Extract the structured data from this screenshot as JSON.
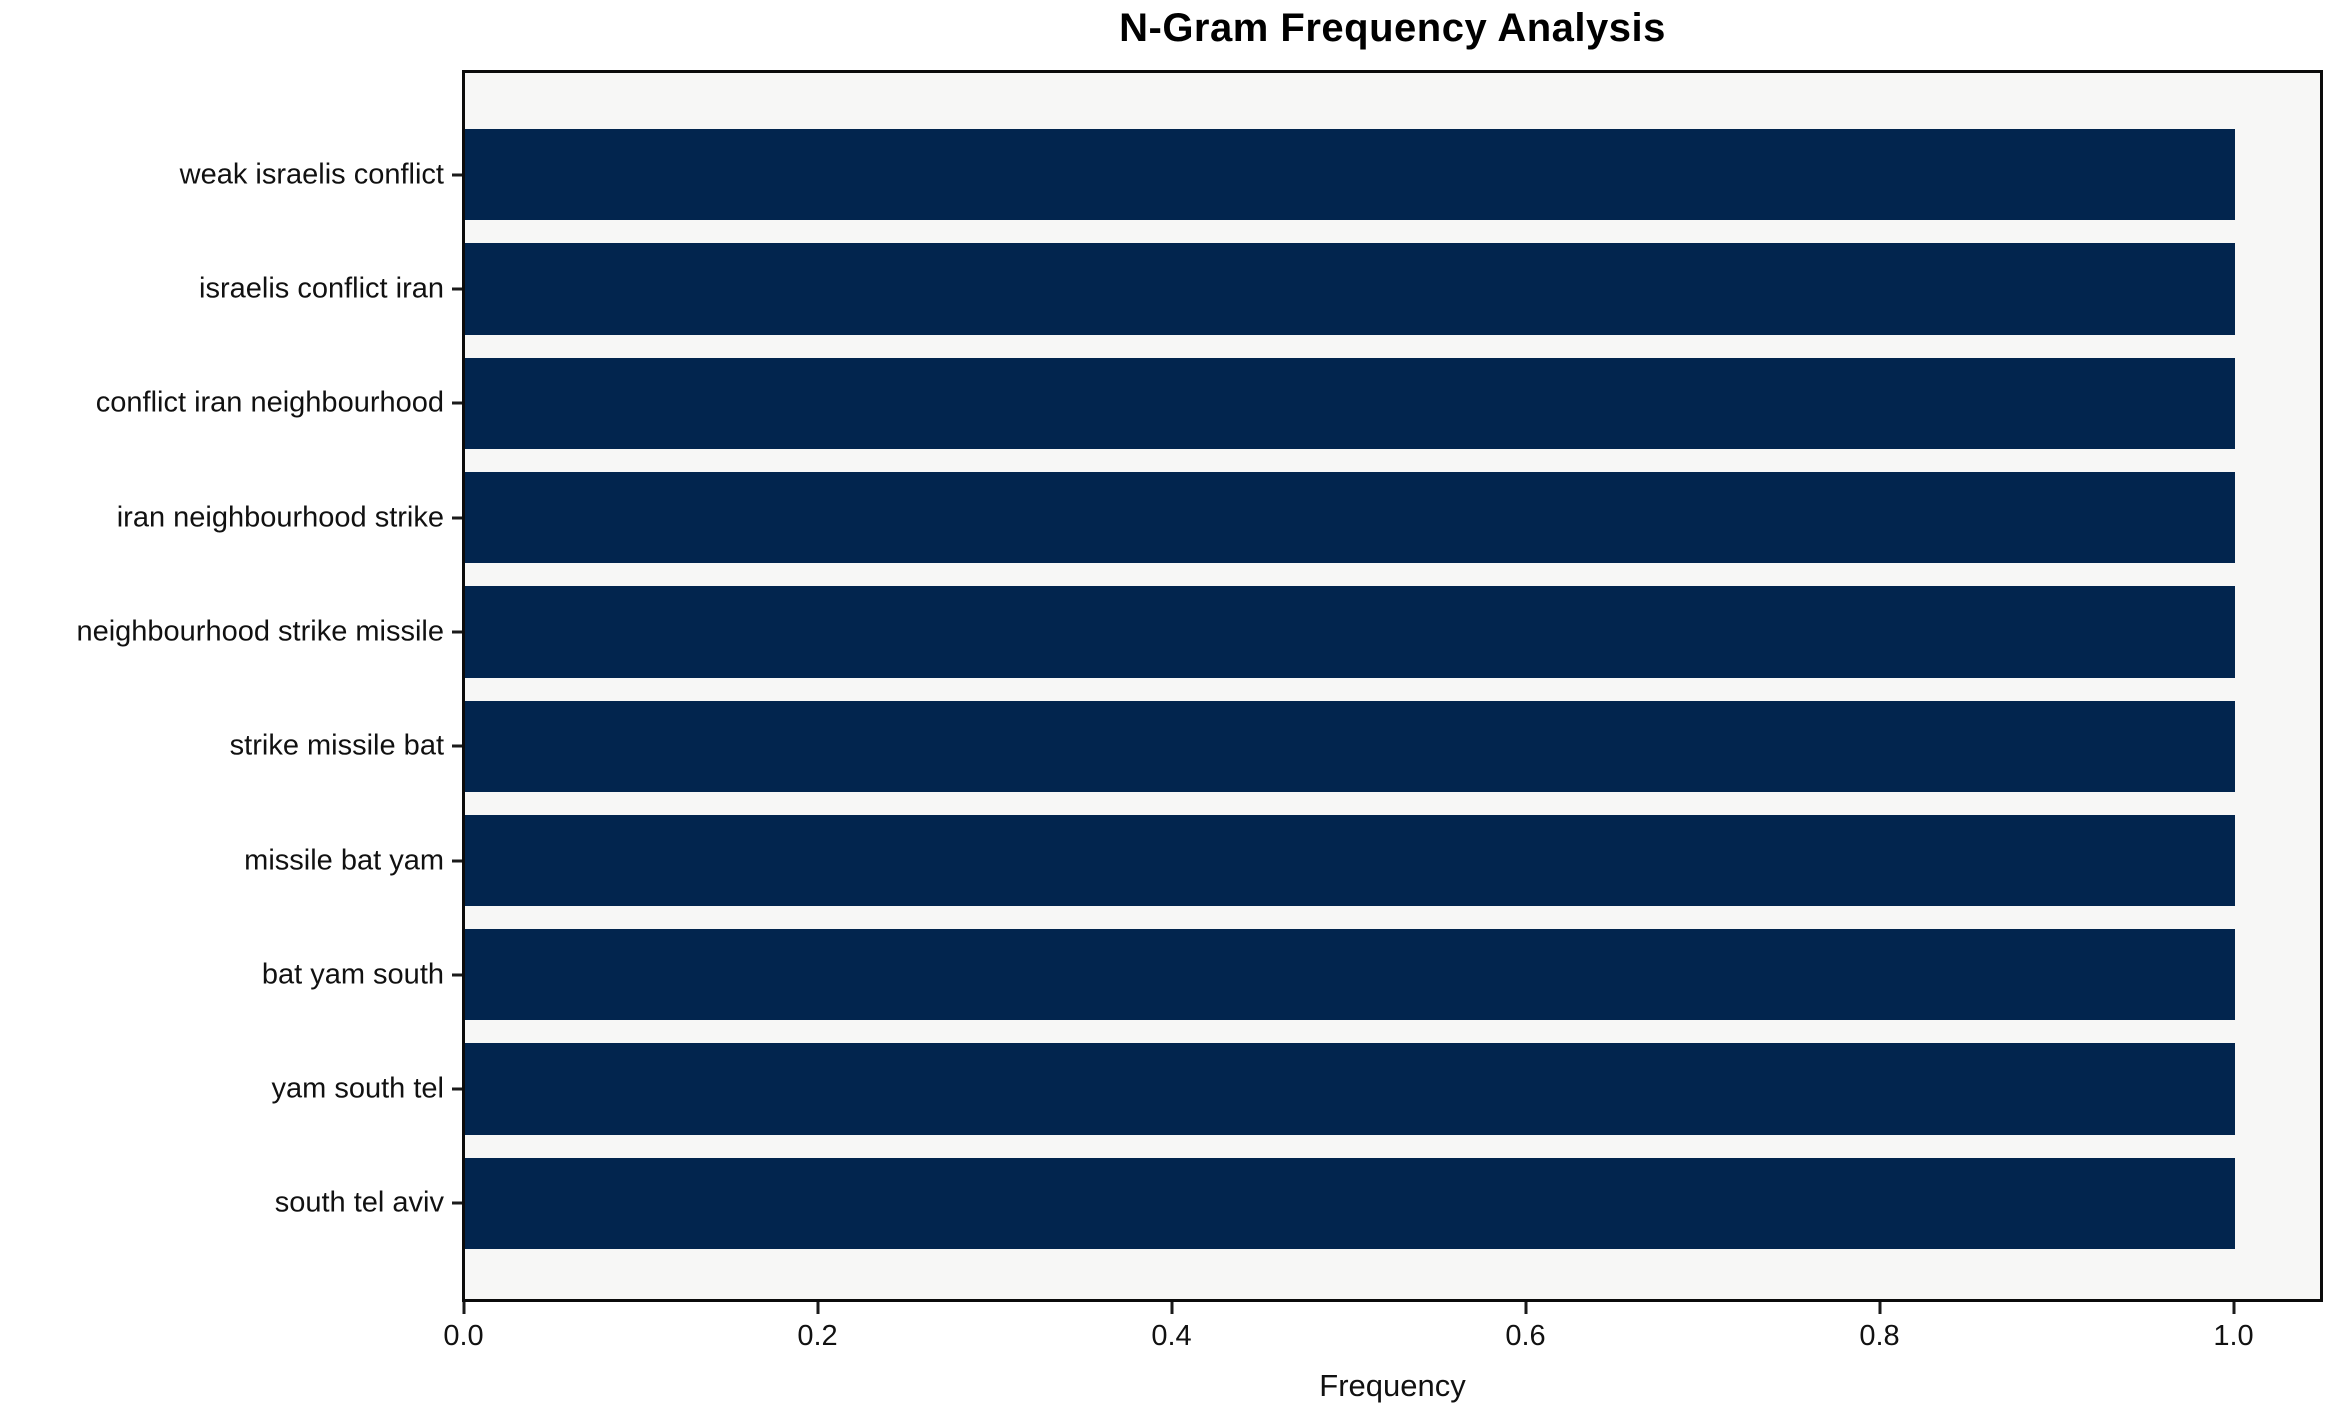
{
  "chart_data": {
    "type": "bar",
    "orientation": "horizontal",
    "title": "N-Gram Frequency Analysis",
    "xlabel": "Frequency",
    "ylabel": "",
    "categories": [
      "weak israelis conflict",
      "israelis conflict iran",
      "conflict iran neighbourhood",
      "iran neighbourhood strike",
      "neighbourhood strike missile",
      "strike missile bat",
      "missile bat yam",
      "bat yam south",
      "yam south tel",
      "south tel aviv"
    ],
    "values": [
      1.0,
      1.0,
      1.0,
      1.0,
      1.0,
      1.0,
      1.0,
      1.0,
      1.0,
      1.0
    ],
    "x_ticks": [
      "0.0",
      "0.2",
      "0.4",
      "0.6",
      "0.8",
      "1.0"
    ],
    "x_tick_values": [
      0.0,
      0.2,
      0.4,
      0.6,
      0.8,
      1.0
    ],
    "xlim": [
      0.0,
      1.05
    ],
    "grid": false,
    "legend": null,
    "colors": {
      "bar": "#02254e",
      "plot_background": "#f7f7f6",
      "figure_background": "#ffffff",
      "spine": "#0b0b0b",
      "tick": "#1a1a1a",
      "text": "#111111"
    }
  }
}
